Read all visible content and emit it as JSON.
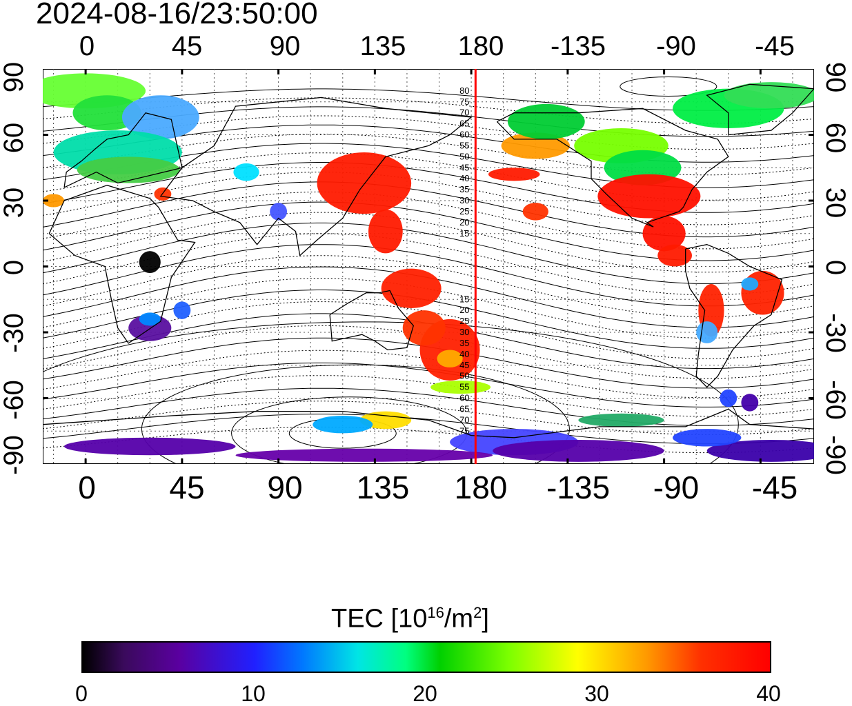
{
  "timestamp": "2024-08-16/23:50:00",
  "x_ticks": [
    "0",
    "45",
    "90",
    "135",
    "180",
    "-135",
    "-90",
    "-45"
  ],
  "y_ticks": [
    "90",
    "60",
    "30",
    "0",
    "-30",
    "-60",
    "-90"
  ],
  "meridian_labels": [
    "80",
    "75",
    "70",
    "65",
    "60",
    "55",
    "50",
    "45",
    "40",
    "35",
    "30",
    "25",
    "20",
    "15",
    "15",
    "20",
    "25",
    "30",
    "35",
    "40",
    "45",
    "50",
    "55",
    "60",
    "65",
    "70",
    "75"
  ],
  "colorbar": {
    "title": "TEC  [10",
    "title_sup1": "16",
    "title_mid": "/m",
    "title_sup2": "2",
    "title_end": "]",
    "ticks": [
      "0",
      "10",
      "20",
      "30",
      "40"
    ],
    "colors": [
      "#000000",
      "#5a00a0",
      "#0000ff",
      "#00e5e5",
      "#00d000",
      "#ffff00",
      "#ff0000"
    ]
  },
  "map": {
    "type": "map",
    "xlim": [
      -20,
      340
    ],
    "ylim": [
      -90,
      90
    ],
    "red_meridian_lon": 182,
    "accent": "#ff0000"
  }
}
